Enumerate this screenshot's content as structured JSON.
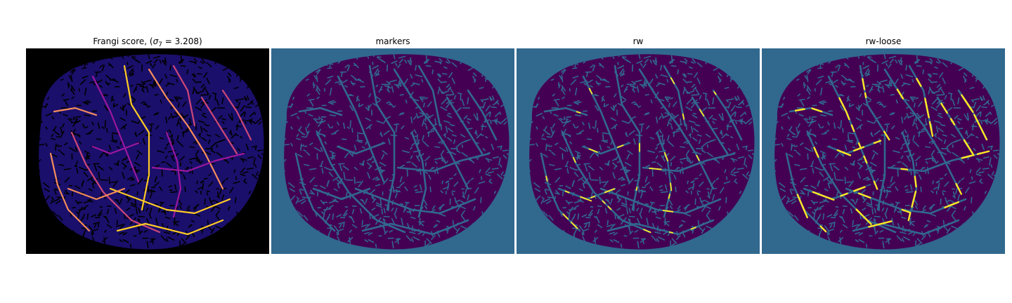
{
  "panels": [
    {
      "title_prefix": "Frangi score, (",
      "title_symbol": "σ",
      "title_subscript": "7",
      "title_suffix": " = 3.208)",
      "colormap": "plasma",
      "background": "#000000",
      "fill": "#1a0f6b",
      "texture": "#000000",
      "vessel_colors": [
        "#f58c5b",
        "#cc4778",
        "#9c179e",
        "#fdca26"
      ]
    },
    {
      "title": "markers",
      "colormap": "viridis",
      "background": "#31688e",
      "fill": "#440154",
      "texture": "#31688e",
      "vessel_colors": [
        "#31688e"
      ]
    },
    {
      "title": "rw",
      "colormap": "viridis",
      "background": "#31688e",
      "fill": "#440154",
      "texture": "#31688e",
      "vessel_colors": [
        "#31688e"
      ],
      "highlight": "#fde725"
    },
    {
      "title": "rw-loose",
      "colormap": "viridis",
      "background": "#31688e",
      "fill": "#440154",
      "texture": "#31688e",
      "vessel_colors": [
        "#31688e"
      ],
      "highlight": "#fde725"
    }
  ]
}
